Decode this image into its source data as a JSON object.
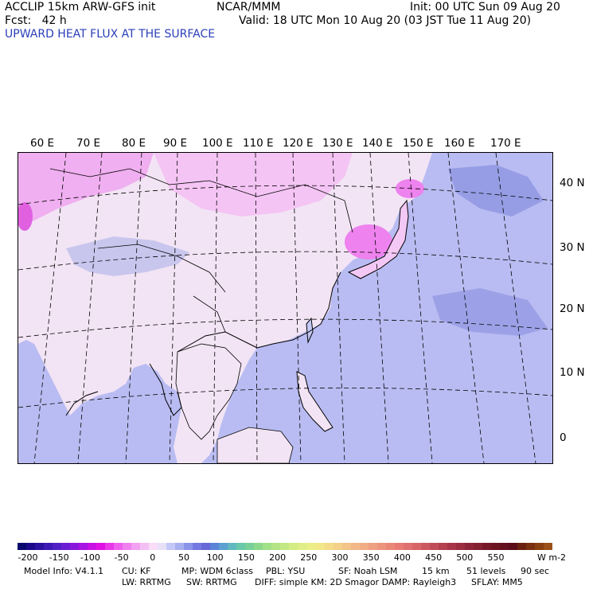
{
  "header": {
    "line1_left": "ACCLIP 15km ARW-GFS init",
    "line1_center": "NCAR/MMM",
    "line1_right": "Init: 00 UTC Sun 09 Aug 20",
    "line2_left": "Fcst:   42 h",
    "line2_right": "Valid: 18 UTC Mon 10 Aug 20 (03 JST Tue 11 Aug 20)",
    "title": "UPWARD HEAT FLUX AT THE SURFACE"
  },
  "map": {
    "lon_labels": [
      "60 E",
      "70 E",
      "80 E",
      "90 E",
      "100 E",
      "110 E",
      "120 E",
      "130 E",
      "140 E",
      "150 E",
      "160 E",
      "170 E"
    ],
    "lat_labels": [
      "40 N",
      "30 N",
      "20 N",
      "10 N",
      "0"
    ],
    "colors": {
      "ocean": "#b9bcf2",
      "land": "#f1e2f1",
      "strong_positive": "#ee82ee",
      "negative_patch": "#8890e0"
    }
  },
  "colorbar": {
    "tick_labels": [
      "-200",
      "-150",
      "-100",
      "-50",
      "0",
      "50",
      "100",
      "150",
      "200",
      "250",
      "300",
      "350",
      "400",
      "450",
      "500",
      "550"
    ],
    "unit": "W m-2",
    "colors": [
      "#08086e",
      "#1a0a8a",
      "#2c10a0",
      "#3e18b4",
      "#5020c6",
      "#6a1ed2",
      "#8a18dc",
      "#a814e2",
      "#c810e4",
      "#e010e4",
      "#e838e8",
      "#ee60ee",
      "#f080f0",
      "#f2a0f2",
      "#f4c0f4",
      "#f8dcf8",
      "#e8e0f8",
      "#c4c8f6",
      "#a8b0f0",
      "#8a94ea",
      "#7478e0",
      "#6868d8",
      "#5a84d8",
      "#5aa0d0",
      "#60b8c0",
      "#68c8a8",
      "#78d098",
      "#8cd88c",
      "#a0e088",
      "#b4e484",
      "#c4e884",
      "#d4ec84",
      "#e0ee88",
      "#ecee88",
      "#f2e888",
      "#f4dc88",
      "#f4d088",
      "#f4c488",
      "#f2b888",
      "#f0ac84",
      "#eea080",
      "#ec947c",
      "#ea8878",
      "#e87c74",
      "#e07070",
      "#d86468",
      "#cc5860",
      "#c04c58",
      "#b44050",
      "#a83448",
      "#9c2c40",
      "#8e2438",
      "#822030",
      "#761828",
      "#6c1420",
      "#62101c",
      "#5a0c18",
      "#6a2010",
      "#7a3010",
      "#8a4010",
      "#9a5018"
    ]
  },
  "footer": {
    "model_info": "Model Info: V4.1.1",
    "cu": "CU: KF",
    "mp": "MP: WDM 6class",
    "pbl": "PBL: YSU",
    "sf": "SF: Noah LSM",
    "res": "15 km",
    "levels": "51 levels",
    "dt": "90 sec",
    "lw": "LW: RRTMG",
    "sw": "SW: RRTMG",
    "diff": "DIFF: simple KM: 2D Smagor DAMP: Rayleigh3",
    "sflay": "SFLAY: MM5"
  }
}
